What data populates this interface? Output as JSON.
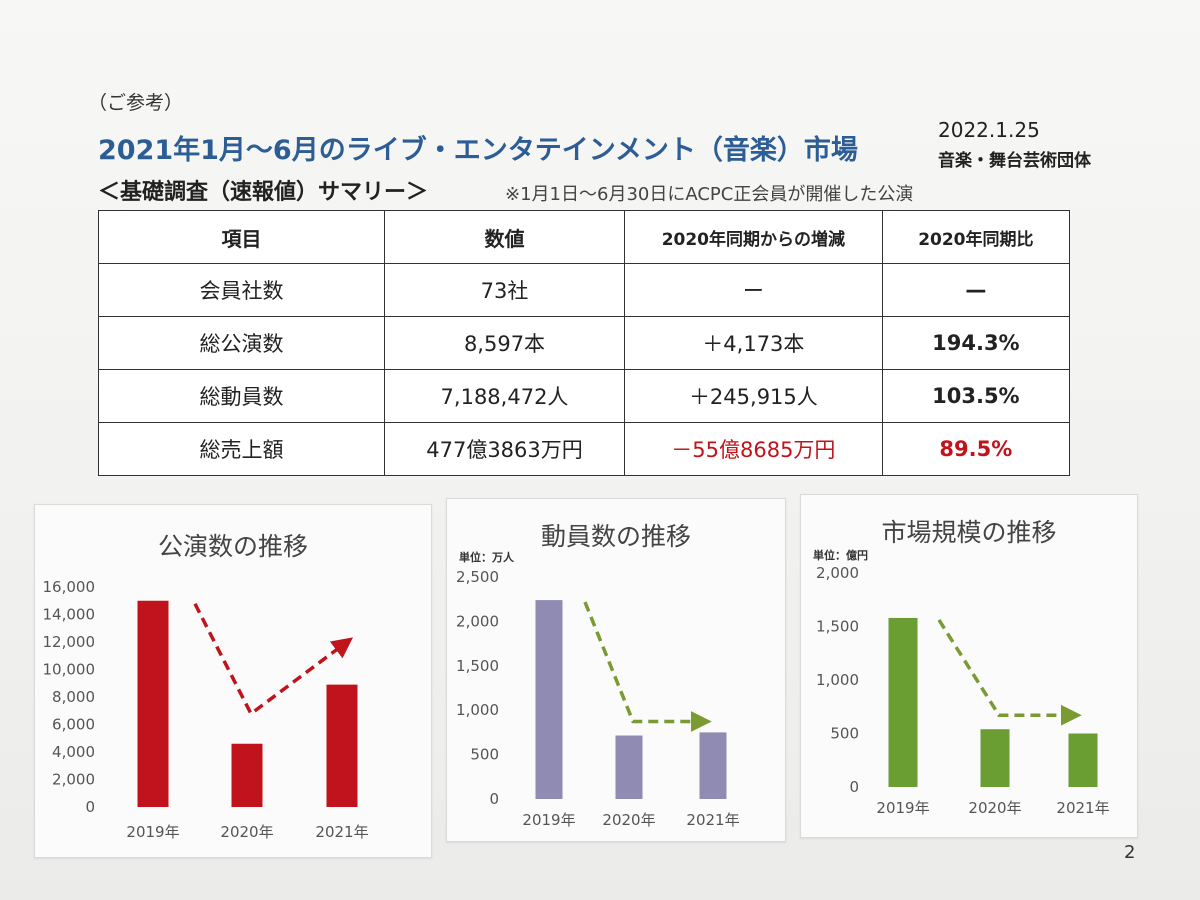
{
  "header": {
    "note": "（ご参考）",
    "title": "2021年1月～6月のライブ・エンタテインメント（音楽）市場",
    "date": "2022.1.25",
    "org": "音楽・舞台芸術団体",
    "subtitle": "＜基礎調査（速報値）サマリー＞",
    "footnote": "※1月1日～6月30日にACPC正会員が開催した公演"
  },
  "table": {
    "headers": [
      "項目",
      "数値",
      "2020年同期からの増減",
      "2020年同期比"
    ],
    "rows": [
      [
        "会員社数",
        "73社",
        "ー",
        "—"
      ],
      [
        "総公演数",
        "8,597本",
        "＋4,173本",
        "194.3%"
      ],
      [
        "総動員数",
        "7,188,472人",
        "＋245,915人",
        "103.5%"
      ],
      [
        "総売上額",
        "477億3863万円",
        "－55億8685万円",
        "89.5%"
      ]
    ]
  },
  "colors": {
    "title_blue": "#2d5d95",
    "negative_red": "#c0131b",
    "bar_red": "#c0131b",
    "bar_purple": "#8f8bb2",
    "bar_green": "#6a9e33",
    "arrow_red": "#c0131b",
    "arrow_green": "#7a9a32"
  },
  "page_number": "2",
  "chart_data": [
    {
      "type": "bar",
      "title": "公演数の推移",
      "unit": "",
      "categories": [
        "2019年",
        "2020年",
        "2021年"
      ],
      "values": [
        15000,
        4600,
        8900
      ],
      "ylim": [
        0,
        16000
      ],
      "yticks": [
        "0",
        "2,000",
        "4,000",
        "6,000",
        "8,000",
        "10,000",
        "12,000",
        "14,000",
        "16,000"
      ],
      "grid": false,
      "color": "#c0131b",
      "arrow_color": "#c0131b",
      "arrow_style": "dashed-v"
    },
    {
      "type": "bar",
      "title": "動員数の推移",
      "unit": "単位：万人",
      "categories": [
        "2019年",
        "2020年",
        "2021年"
      ],
      "values": [
        2240,
        715,
        750
      ],
      "ylim": [
        0,
        2500
      ],
      "yticks": [
        "0",
        "500",
        "1,000",
        "1,500",
        "2,000",
        "2,500"
      ],
      "grid": false,
      "color": "#8f8bb2",
      "arrow_color": "#7a9a32",
      "arrow_style": "dashed-down-flat"
    },
    {
      "type": "bar",
      "title": "市場規模の推移",
      "unit": "単位：億円",
      "categories": [
        "2019年",
        "2020年",
        "2021年"
      ],
      "values": [
        1580,
        540,
        500
      ],
      "ylim": [
        0,
        2000
      ],
      "yticks": [
        "0",
        "500",
        "1,000",
        "1,500",
        "2,000"
      ],
      "grid": false,
      "color": "#6a9e33",
      "arrow_color": "#7a9a32",
      "arrow_style": "dashed-down-flat"
    }
  ]
}
